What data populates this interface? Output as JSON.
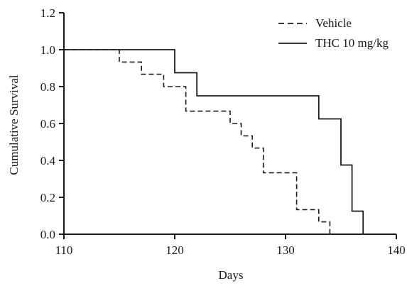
{
  "chart_data": {
    "type": "line",
    "subtype": "kaplan-meier-step",
    "title": "",
    "xlabel": "Days",
    "ylabel": "Cumulative Survival",
    "xlim": [
      110,
      140
    ],
    "ylim": [
      0.0,
      1.2
    ],
    "x_ticks": [
      110,
      120,
      130,
      140
    ],
    "x_tick_labels": [
      "110",
      "120",
      "130",
      "140"
    ],
    "y_ticks": [
      0.0,
      0.2,
      0.4,
      0.6,
      0.8,
      1.0,
      1.2
    ],
    "y_tick_labels": [
      "0.0",
      "0.2",
      "0.4",
      "0.6",
      "0.8",
      "1.0",
      "1.2"
    ],
    "grid": false,
    "legend_position": "top-right",
    "series": [
      {
        "name": "Vehicle",
        "style": "dashed",
        "color": "#1a1a1a",
        "x": [
          110,
          115,
          117,
          119,
          121,
          125,
          126,
          127,
          128,
          131,
          133,
          134
        ],
        "y": [
          1.0,
          0.933,
          0.867,
          0.8,
          0.667,
          0.6,
          0.533,
          0.467,
          0.333,
          0.133,
          0.067,
          0.0
        ]
      },
      {
        "name": "THC 10 mg/kg",
        "style": "solid",
        "color": "#1a1a1a",
        "x": [
          110,
          120,
          122,
          133,
          135,
          136,
          137
        ],
        "y": [
          1.0,
          0.875,
          0.75,
          0.625,
          0.375,
          0.125,
          0.0
        ]
      }
    ]
  }
}
